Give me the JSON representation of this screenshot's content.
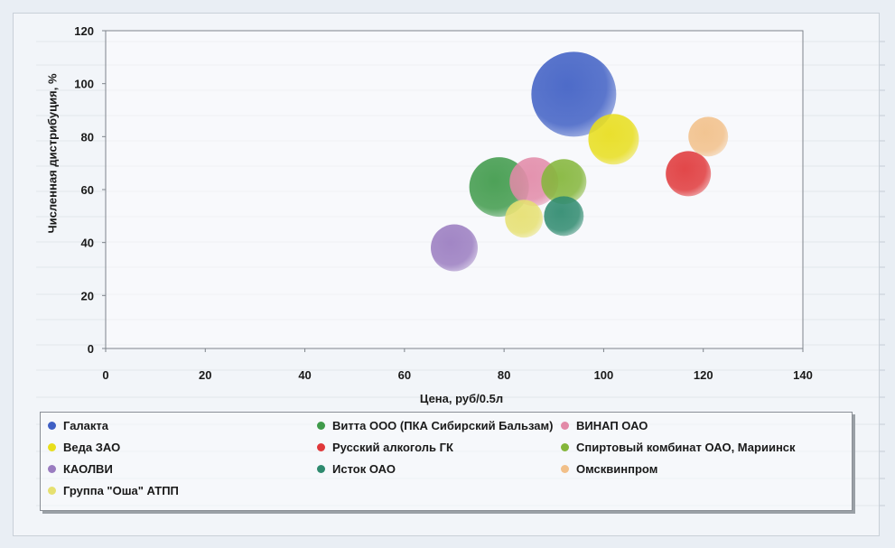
{
  "chart_data": {
    "type": "bubble",
    "xlabel": "Цена, руб/0.5л",
    "ylabel": "Численная дистрибуция, %",
    "xlim": [
      0,
      140
    ],
    "ylim": [
      0,
      120
    ],
    "xticks": [
      "0",
      "20",
      "40",
      "60",
      "80",
      "100",
      "120",
      "140"
    ],
    "yticks": [
      "0",
      "20",
      "40",
      "60",
      "80",
      "100",
      "120"
    ],
    "grid": false,
    "legend_position": "bottom",
    "series": [
      {
        "name": "Галакта",
        "x": 94,
        "y": 96,
        "size": 47,
        "color": "#3f5fc4"
      },
      {
        "name": "Витта ООО (ПКА Сибирский Бальзам)",
        "x": 79,
        "y": 61,
        "size": 33,
        "color": "#3f9a4a"
      },
      {
        "name": "ВИНАП ОАО",
        "x": 86,
        "y": 63,
        "size": 27,
        "color": "#e28aa8"
      },
      {
        "name": "Веда ЗАО",
        "x": 102,
        "y": 79,
        "size": 28,
        "color": "#e8de1c"
      },
      {
        "name": "Русский алкоголь ГК",
        "x": 117,
        "y": 66,
        "size": 25,
        "color": "#e0383a"
      },
      {
        "name": "Спиртовый комбинат ОАО, Мариинск",
        "x": 92,
        "y": 63,
        "size": 25,
        "color": "#84b63a"
      },
      {
        "name": "КАОЛВИ",
        "x": 70,
        "y": 38,
        "size": 26,
        "color": "#9a7cc0"
      },
      {
        "name": "Исток ОАО",
        "x": 92,
        "y": 50,
        "size": 22,
        "color": "#2e8a6e"
      },
      {
        "name": "Омсквинпром",
        "x": 121,
        "y": 80,
        "size": 22,
        "color": "#f2c089"
      },
      {
        "name": "Группа \"Оша\" АТПП",
        "x": 84,
        "y": 49,
        "size": 21,
        "color": "#e6e070"
      }
    ]
  },
  "legend": {
    "items": [
      {
        "label": "Галакта",
        "color": "#3f5fc4"
      },
      {
        "label": "Витта ООО (ПКА Сибирский Бальзам)",
        "color": "#3f9a4a"
      },
      {
        "label": "ВИНАП ОАО",
        "color": "#e28aa8"
      },
      {
        "label": "Веда ЗАО",
        "color": "#e8de1c"
      },
      {
        "label": "Русский алкоголь ГК",
        "color": "#e0383a"
      },
      {
        "label": "Спиртовый комбинат ОАО, Мариинск",
        "color": "#84b63a"
      },
      {
        "label": "КАОЛВИ",
        "color": "#9a7cc0"
      },
      {
        "label": "Исток ОАО",
        "color": "#2e8a6e"
      },
      {
        "label": "Омсквинпром",
        "color": "#f2c089"
      },
      {
        "label": "Группа \"Оша\" АТПП",
        "color": "#e6e070"
      }
    ]
  }
}
